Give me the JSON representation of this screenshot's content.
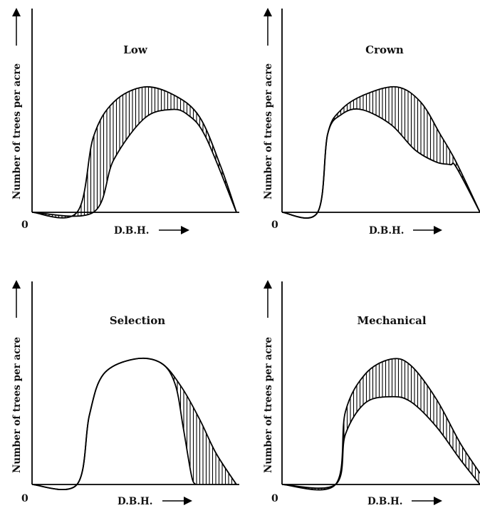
{
  "colors": {
    "ink": "#000000",
    "background": "#ffffff"
  },
  "chart_data": [
    {
      "type": "area",
      "title": "Low",
      "xlabel": "D.B.H.",
      "ylabel": "Number of trees per acre",
      "origin_label": "0",
      "series": [
        {
          "role": "before-thinning",
          "x": [
            0.0,
            0.22,
            0.3,
            0.4,
            0.55,
            0.7,
            0.82,
            0.92,
            1.0
          ],
          "y": [
            0.0,
            0.0,
            0.6,
            0.88,
            1.0,
            0.93,
            0.76,
            0.38,
            0.0
          ]
        },
        {
          "role": "after-thinning",
          "x": [
            0.0,
            0.3,
            0.4,
            0.55,
            0.68,
            0.76,
            0.85,
            1.0
          ],
          "y": [
            0.0,
            0.0,
            0.42,
            0.75,
            0.82,
            0.78,
            0.6,
            0.0
          ]
        }
      ]
    },
    {
      "type": "area",
      "title": "Crown",
      "xlabel": "D.B.H.",
      "ylabel": "Number of trees per acre",
      "origin_label": "0",
      "series": [
        {
          "role": "before-thinning",
          "x": [
            0.0,
            0.18,
            0.23,
            0.3,
            0.42,
            0.58,
            0.7,
            0.8,
            0.88,
            1.0
          ],
          "y": [
            0.0,
            0.0,
            0.62,
            0.82,
            0.94,
            1.0,
            0.88,
            0.62,
            0.4,
            0.0
          ]
        },
        {
          "role": "after-thinning",
          "x": [
            0.0,
            0.18,
            0.23,
            0.3,
            0.4,
            0.55,
            0.67,
            0.78,
            0.85,
            0.88,
            1.0
          ],
          "y": [
            0.0,
            0.0,
            0.62,
            0.78,
            0.82,
            0.7,
            0.5,
            0.4,
            0.38,
            0.36,
            0.0
          ]
        }
      ]
    },
    {
      "type": "area",
      "title": "Selection",
      "xlabel": "D.B.H.",
      "ylabel": "Number of trees per acre",
      "origin_label": "0",
      "series": [
        {
          "role": "before-thinning",
          "x": [
            0.0,
            0.22,
            0.28,
            0.35,
            0.5,
            0.63,
            0.73,
            0.82,
            0.9,
            1.0
          ],
          "y": [
            0.0,
            0.0,
            0.55,
            0.88,
            1.0,
            0.97,
            0.78,
            0.52,
            0.25,
            0.0
          ]
        },
        {
          "role": "after-thinning",
          "x": [
            0.0,
            0.22,
            0.28,
            0.35,
            0.5,
            0.63,
            0.7,
            0.74,
            0.78,
            0.8
          ],
          "y": [
            0.0,
            0.0,
            0.55,
            0.88,
            1.0,
            0.97,
            0.8,
            0.45,
            0.07,
            0.0
          ]
        }
      ]
    },
    {
      "type": "area",
      "title": "Mechanical",
      "xlabel": "D.B.H.",
      "ylabel": "Number of trees per acre",
      "origin_label": "0",
      "series": [
        {
          "role": "before-thinning",
          "x": [
            0.0,
            0.27,
            0.32,
            0.42,
            0.55,
            0.65,
            0.78,
            0.9,
            1.0
          ],
          "y": [
            0.0,
            0.0,
            0.58,
            0.88,
            1.0,
            0.95,
            0.68,
            0.33,
            0.09
          ]
        },
        {
          "role": "after-thinning",
          "x": [
            0.0,
            0.27,
            0.32,
            0.42,
            0.55,
            0.65,
            0.78,
            0.9,
            1.0
          ],
          "y": [
            0.0,
            0.0,
            0.4,
            0.65,
            0.7,
            0.66,
            0.46,
            0.2,
            0.0
          ]
        }
      ]
    }
  ]
}
